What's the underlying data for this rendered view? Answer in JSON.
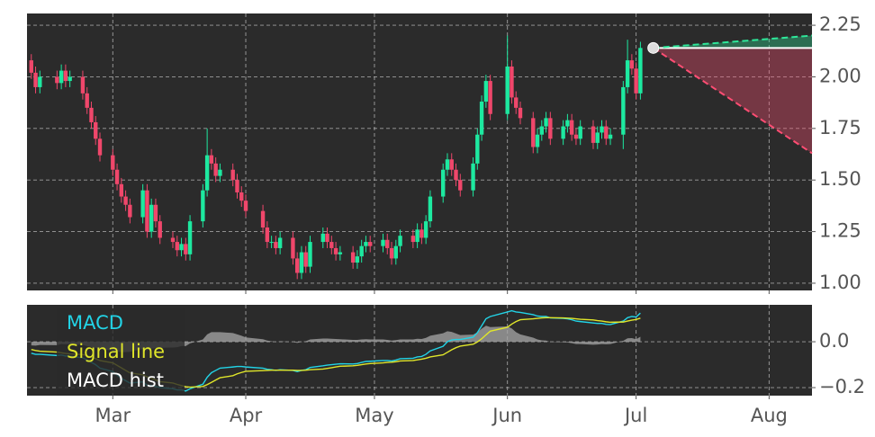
{
  "chart_data": [
    {
      "type": "candlestick",
      "x": [
        41,
        42,
        43,
        47,
        48,
        49,
        50,
        53,
        54,
        55,
        56,
        57,
        60,
        61,
        62,
        63,
        64,
        67,
        68,
        69,
        70,
        71,
        74,
        75,
        76,
        77,
        78,
        81,
        82,
        83,
        84,
        85,
        88,
        89,
        90,
        91,
        95,
        96,
        97,
        98,
        99,
        102,
        103,
        104,
        105,
        106,
        109,
        110,
        111,
        112,
        113,
        116,
        117,
        118,
        119,
        120,
        123,
        124,
        125,
        126,
        127,
        130,
        131,
        132,
        133,
        134,
        137,
        138,
        139,
        140,
        141,
        144,
        145,
        146,
        147,
        148,
        152,
        153,
        154,
        155,
        158,
        159,
        160,
        161,
        162,
        165,
        166,
        167,
        168,
        169,
        172,
        173,
        174,
        175,
        176,
        179,
        180,
        181,
        182,
        183
      ],
      "open": [
        2.08,
        2.02,
        1.95,
        2.0,
        1.97,
        2.03,
        1.98,
        2.0,
        1.92,
        1.85,
        1.78,
        1.7,
        1.62,
        1.55,
        1.48,
        1.42,
        1.38,
        1.32,
        1.45,
        1.25,
        1.38,
        1.3,
        1.22,
        1.2,
        1.16,
        1.19,
        1.14,
        1.3,
        1.45,
        1.62,
        1.58,
        1.52,
        1.55,
        1.5,
        1.44,
        1.4,
        1.35,
        1.27,
        1.2,
        1.2,
        1.17,
        1.22,
        1.12,
        1.05,
        1.15,
        1.08,
        1.2,
        1.24,
        1.2,
        1.17,
        1.14,
        1.15,
        1.1,
        1.13,
        1.18,
        1.2,
        1.18,
        1.21,
        1.17,
        1.12,
        1.18,
        1.23,
        1.2,
        1.26,
        1.22,
        1.3,
        1.42,
        1.55,
        1.6,
        1.55,
        1.5,
        1.45,
        1.58,
        1.72,
        1.88,
        1.98,
        1.82,
        2.05,
        1.9,
        1.85,
        1.8,
        1.66,
        1.72,
        1.76,
        1.8,
        1.7,
        1.76,
        1.79,
        1.72,
        1.7,
        1.76,
        1.68,
        1.73,
        1.76,
        1.7,
        1.72,
        1.95,
        2.08,
        2.04,
        1.92
      ],
      "high": [
        2.11,
        2.05,
        2.03,
        2.03,
        2.06,
        2.06,
        2.03,
        2.03,
        1.95,
        1.88,
        1.81,
        1.73,
        1.65,
        1.58,
        1.51,
        1.45,
        1.41,
        1.48,
        1.48,
        1.41,
        1.41,
        1.33,
        1.25,
        1.23,
        1.22,
        1.22,
        1.33,
        1.48,
        1.75,
        1.65,
        1.61,
        1.58,
        1.58,
        1.53,
        1.47,
        1.43,
        1.38,
        1.3,
        1.23,
        1.23,
        1.25,
        1.25,
        1.15,
        1.18,
        1.18,
        1.23,
        1.27,
        1.27,
        1.23,
        1.2,
        1.18,
        1.18,
        1.16,
        1.21,
        1.23,
        1.23,
        1.24,
        1.24,
        1.2,
        1.21,
        1.26,
        1.26,
        1.29,
        1.29,
        1.33,
        1.45,
        1.58,
        1.63,
        1.63,
        1.58,
        1.53,
        1.61,
        1.75,
        1.91,
        2.01,
        2.01,
        2.2,
        2.08,
        1.93,
        1.88,
        1.83,
        1.75,
        1.79,
        1.83,
        1.83,
        1.79,
        1.82,
        1.82,
        1.75,
        1.79,
        1.79,
        1.76,
        1.79,
        1.79,
        1.75,
        1.98,
        2.18,
        2.11,
        2.07,
        2.17
      ],
      "low": [
        1.99,
        1.92,
        1.92,
        1.94,
        1.94,
        1.95,
        1.95,
        1.89,
        1.82,
        1.75,
        1.67,
        1.59,
        1.52,
        1.45,
        1.39,
        1.35,
        1.29,
        1.29,
        1.22,
        1.22,
        1.27,
        1.19,
        1.17,
        1.13,
        1.13,
        1.11,
        1.11,
        1.27,
        1.42,
        1.55,
        1.49,
        1.49,
        1.47,
        1.41,
        1.37,
        1.32,
        1.24,
        1.17,
        1.17,
        1.14,
        1.14,
        1.09,
        1.02,
        1.02,
        1.05,
        1.05,
        1.17,
        1.17,
        1.14,
        1.11,
        1.11,
        1.07,
        1.07,
        1.1,
        1.15,
        1.15,
        1.15,
        1.14,
        1.09,
        1.09,
        1.15,
        1.17,
        1.17,
        1.19,
        1.19,
        1.27,
        1.39,
        1.52,
        1.52,
        1.47,
        1.42,
        1.42,
        1.55,
        1.69,
        1.85,
        1.79,
        1.79,
        1.87,
        1.82,
        1.77,
        1.63,
        1.63,
        1.69,
        1.73,
        1.67,
        1.67,
        1.73,
        1.69,
        1.67,
        1.67,
        1.65,
        1.65,
        1.7,
        1.67,
        1.67,
        1.65,
        1.92,
        2.01,
        1.89,
        1.89
      ],
      "close": [
        2.02,
        1.95,
        2.0,
        1.97,
        2.03,
        1.98,
        2.0,
        1.92,
        1.85,
        1.78,
        1.7,
        1.62,
        1.55,
        1.48,
        1.42,
        1.38,
        1.32,
        1.45,
        1.25,
        1.38,
        1.3,
        1.22,
        1.2,
        1.16,
        1.19,
        1.14,
        1.3,
        1.45,
        1.62,
        1.58,
        1.52,
        1.55,
        1.5,
        1.44,
        1.4,
        1.35,
        1.27,
        1.2,
        1.2,
        1.17,
        1.22,
        1.12,
        1.05,
        1.15,
        1.08,
        1.2,
        1.24,
        1.2,
        1.17,
        1.14,
        1.15,
        1.1,
        1.13,
        1.18,
        1.2,
        1.18,
        1.21,
        1.17,
        1.12,
        1.18,
        1.23,
        1.2,
        1.26,
        1.22,
        1.3,
        1.42,
        1.55,
        1.6,
        1.55,
        1.5,
        1.45,
        1.58,
        1.72,
        1.88,
        1.98,
        1.82,
        2.05,
        1.9,
        1.85,
        1.8,
        1.66,
        1.72,
        1.76,
        1.8,
        1.7,
        1.76,
        1.79,
        1.72,
        1.7,
        1.76,
        1.68,
        1.73,
        1.76,
        1.7,
        1.72,
        1.95,
        2.08,
        2.04,
        1.92,
        2.14
      ],
      "up_color": "#1de9a0",
      "down_color": "#f0476b",
      "forecast": {
        "x": [
          186,
          223
        ],
        "level": 2.14,
        "upper": [
          2.14,
          2.2
        ],
        "lower": [
          2.14,
          1.63
        ],
        "upper_color": "#2ee89a",
        "lower_color": "#ff4d73"
      },
      "xlim": [
        40,
        223
      ],
      "xticks": [
        {
          "value": 60,
          "label": "Mar"
        },
        {
          "value": 91,
          "label": "Apr"
        },
        {
          "value": 121,
          "label": "May"
        },
        {
          "value": 152,
          "label": "Jun"
        },
        {
          "value": 182,
          "label": "Jul"
        },
        {
          "value": 213,
          "label": "Aug"
        }
      ],
      "ylim": [
        0.965,
        2.307
      ],
      "yticks": [
        {
          "value": 1,
          "label": "1.00"
        },
        1.25,
        {
          "value": 1.5,
          "label": "1.50"
        },
        1.75,
        {
          "value": 2,
          "label": "2.00"
        },
        2.25
      ],
      "grid": true
    },
    {
      "type": "line",
      "series": [
        {
          "name": "MACD",
          "color": "#22d3e6",
          "values": [
            -0.05,
            -0.055,
            -0.055,
            -0.06,
            -0.058,
            -0.062,
            -0.063,
            -0.07,
            -0.08,
            -0.09,
            -0.1,
            -0.115,
            -0.13,
            -0.145,
            -0.16,
            -0.17,
            -0.18,
            -0.175,
            -0.19,
            -0.19,
            -0.195,
            -0.2,
            -0.205,
            -0.21,
            -0.21,
            -0.215,
            -0.205,
            -0.185,
            -0.155,
            -0.135,
            -0.125,
            -0.115,
            -0.11,
            -0.108,
            -0.108,
            -0.11,
            -0.115,
            -0.12,
            -0.122,
            -0.125,
            -0.122,
            -0.125,
            -0.13,
            -0.125,
            -0.122,
            -0.112,
            -0.105,
            -0.102,
            -0.1,
            -0.098,
            -0.096,
            -0.097,
            -0.095,
            -0.09,
            -0.086,
            -0.085,
            -0.082,
            -0.082,
            -0.084,
            -0.08,
            -0.074,
            -0.072,
            -0.066,
            -0.064,
            -0.055,
            -0.04,
            -0.02,
            0.0,
            0.008,
            0.01,
            0.01,
            0.02,
            0.04,
            0.07,
            0.1,
            0.11,
            0.13,
            0.135,
            0.13,
            0.128,
            0.118,
            0.112,
            0.11,
            0.11,
            0.104,
            0.102,
            0.1,
            0.096,
            0.09,
            0.088,
            0.082,
            0.08,
            0.08,
            0.076,
            0.075,
            0.09,
            0.105,
            0.11,
            0.108,
            0.125
          ]
        },
        {
          "name": "Signal line",
          "color": "#e0e62a",
          "values": [
            -0.034,
            -0.038,
            -0.041,
            -0.045,
            -0.048,
            -0.051,
            -0.053,
            -0.056,
            -0.061,
            -0.067,
            -0.074,
            -0.082,
            -0.092,
            -0.103,
            -0.114,
            -0.125,
            -0.136,
            -0.144,
            -0.153,
            -0.16,
            -0.167,
            -0.174,
            -0.18,
            -0.186,
            -0.191,
            -0.196,
            -0.198,
            -0.195,
            -0.187,
            -0.177,
            -0.167,
            -0.157,
            -0.148,
            -0.14,
            -0.134,
            -0.129,
            -0.126,
            -0.125,
            -0.124,
            -0.124,
            -0.124,
            -0.124,
            -0.125,
            -0.125,
            -0.124,
            -0.122,
            -0.119,
            -0.116,
            -0.113,
            -0.11,
            -0.107,
            -0.105,
            -0.103,
            -0.1,
            -0.097,
            -0.095,
            -0.092,
            -0.09,
            -0.089,
            -0.087,
            -0.084,
            -0.082,
            -0.079,
            -0.076,
            -0.072,
            -0.066,
            -0.057,
            -0.046,
            -0.035,
            -0.026,
            -0.019,
            -0.011,
            -0.001,
            0.013,
            0.03,
            0.046,
            0.063,
            0.077,
            0.088,
            0.096,
            0.1,
            0.102,
            0.104,
            0.105,
            0.105,
            0.104,
            0.103,
            0.102,
            0.1,
            0.098,
            0.095,
            0.092,
            0.09,
            0.087,
            0.085,
            0.086,
            0.09,
            0.094,
            0.097,
            0.103
          ]
        },
        {
          "name": "MACD hist",
          "color": "#a8a8a8",
          "values": [
            -0.016,
            -0.017,
            -0.014,
            -0.015,
            -0.01,
            -0.011,
            -0.01,
            -0.014,
            -0.019,
            -0.023,
            -0.026,
            -0.033,
            -0.038,
            -0.042,
            -0.046,
            -0.045,
            -0.044,
            -0.031,
            -0.037,
            -0.03,
            -0.028,
            -0.026,
            -0.025,
            -0.024,
            -0.019,
            -0.019,
            -0.007,
            0.01,
            0.032,
            0.042,
            0.042,
            0.042,
            0.038,
            0.032,
            0.026,
            0.019,
            0.011,
            0.005,
            0.002,
            -0.001,
            0.002,
            -0.001,
            -0.005,
            0.0,
            0.002,
            0.01,
            0.014,
            0.014,
            0.013,
            0.012,
            0.011,
            0.008,
            0.008,
            0.01,
            0.011,
            0.01,
            0.01,
            0.008,
            0.005,
            0.007,
            0.01,
            0.01,
            0.013,
            0.012,
            0.017,
            0.026,
            0.037,
            0.046,
            0.043,
            0.036,
            0.029,
            0.031,
            0.041,
            0.057,
            0.07,
            0.064,
            0.067,
            0.058,
            0.042,
            0.032,
            0.018,
            0.01,
            0.006,
            0.005,
            -0.001,
            -0.002,
            -0.003,
            -0.006,
            -0.01,
            -0.01,
            -0.013,
            -0.012,
            -0.01,
            -0.011,
            -0.01,
            0.004,
            0.015,
            0.016,
            0.011,
            0.022
          ]
        }
      ],
      "ylim": [
        -0.235,
        0.161
      ],
      "yticks": [
        {
          "value": 0,
          "label": "0.0"
        },
        {
          "value": -0.2,
          "label": "−0.2"
        }
      ],
      "grid": true,
      "legend": "upper left"
    }
  ]
}
